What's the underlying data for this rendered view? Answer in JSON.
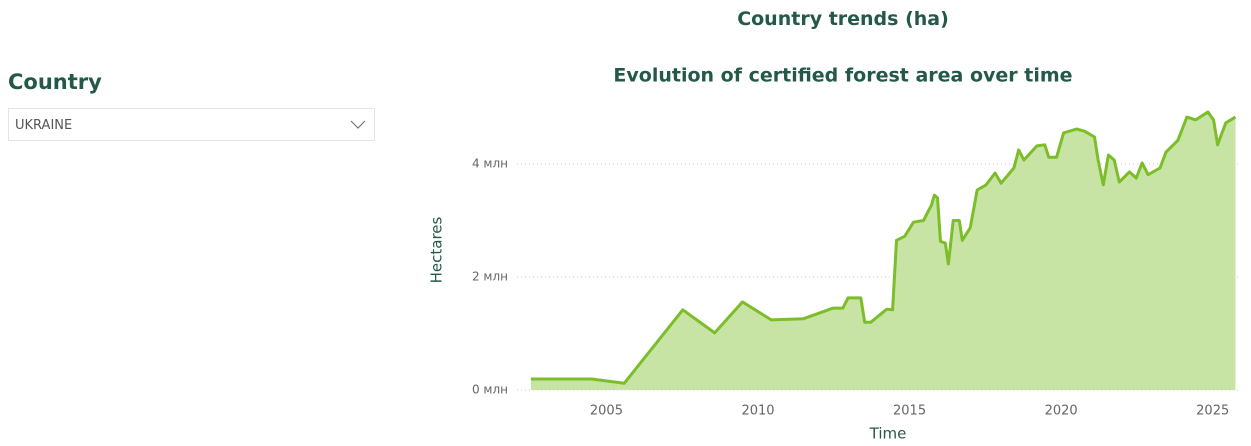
{
  "page": {
    "heading": "Country trends (ha)"
  },
  "filter": {
    "label": "Country",
    "selected": "UKRAINE"
  },
  "chart_data": {
    "type": "area",
    "title": "Evolution of certified forest area over time",
    "x_label": "Time",
    "y_label": "Hectares",
    "color": "#7cbd2a",
    "fill": "#c8e4a4",
    "x": [
      2002.51,
      2004.51,
      2005.59,
      2007.52,
      2008.57,
      2009.49,
      2010.44,
      2011.49,
      2012.48,
      2012.8,
      2012.97,
      2013.39,
      2013.52,
      2013.72,
      2014.25,
      2014.44,
      2014.57,
      2014.84,
      2015.13,
      2015.46,
      2015.72,
      2015.82,
      2015.92,
      2016.02,
      2016.18,
      2016.28,
      2016.44,
      2016.64,
      2016.74,
      2017.0,
      2017.23,
      2017.52,
      2017.82,
      2018.02,
      2018.44,
      2018.6,
      2018.77,
      2019.2,
      2019.46,
      2019.59,
      2019.85,
      2020.08,
      2020.51,
      2020.77,
      2021.1,
      2021.22,
      2021.39,
      2021.56,
      2021.75,
      2021.92,
      2022.25,
      2022.48,
      2022.67,
      2022.87,
      2023.26,
      2023.46,
      2023.85,
      2024.15,
      2024.44,
      2024.84,
      2025.03,
      2025.16,
      2025.43,
      2025.75
    ],
    "values": [
      195000,
      195000,
      120000,
      1420000,
      1010000,
      1560000,
      1240000,
      1260000,
      1450000,
      1450000,
      1630000,
      1630000,
      1200000,
      1200000,
      1430000,
      1420000,
      2650000,
      2720000,
      2970000,
      3000000,
      3270000,
      3450000,
      3400000,
      2630000,
      2600000,
      2230000,
      3000000,
      3000000,
      2650000,
      2870000,
      3540000,
      3630000,
      3840000,
      3660000,
      3930000,
      4250000,
      4070000,
      4320000,
      4340000,
      4120000,
      4120000,
      4550000,
      4620000,
      4580000,
      4480000,
      4070000,
      3630000,
      4160000,
      4070000,
      3680000,
      3860000,
      3750000,
      4020000,
      3810000,
      3930000,
      4210000,
      4420000,
      4830000,
      4780000,
      4920000,
      4780000,
      4340000,
      4730000,
      4830000
    ],
    "xlim": [
      2002.05,
      2025.9
    ],
    "xticks": [
      2005,
      2010,
      2015,
      2020,
      2025
    ],
    "ylim": [
      0,
      5000000
    ],
    "yticks": [
      {
        "value": 0,
        "label": "0 млн"
      },
      {
        "value": 2000000,
        "label": "2 млн"
      },
      {
        "value": 4000000,
        "label": "4 млн"
      }
    ],
    "grid": true
  }
}
